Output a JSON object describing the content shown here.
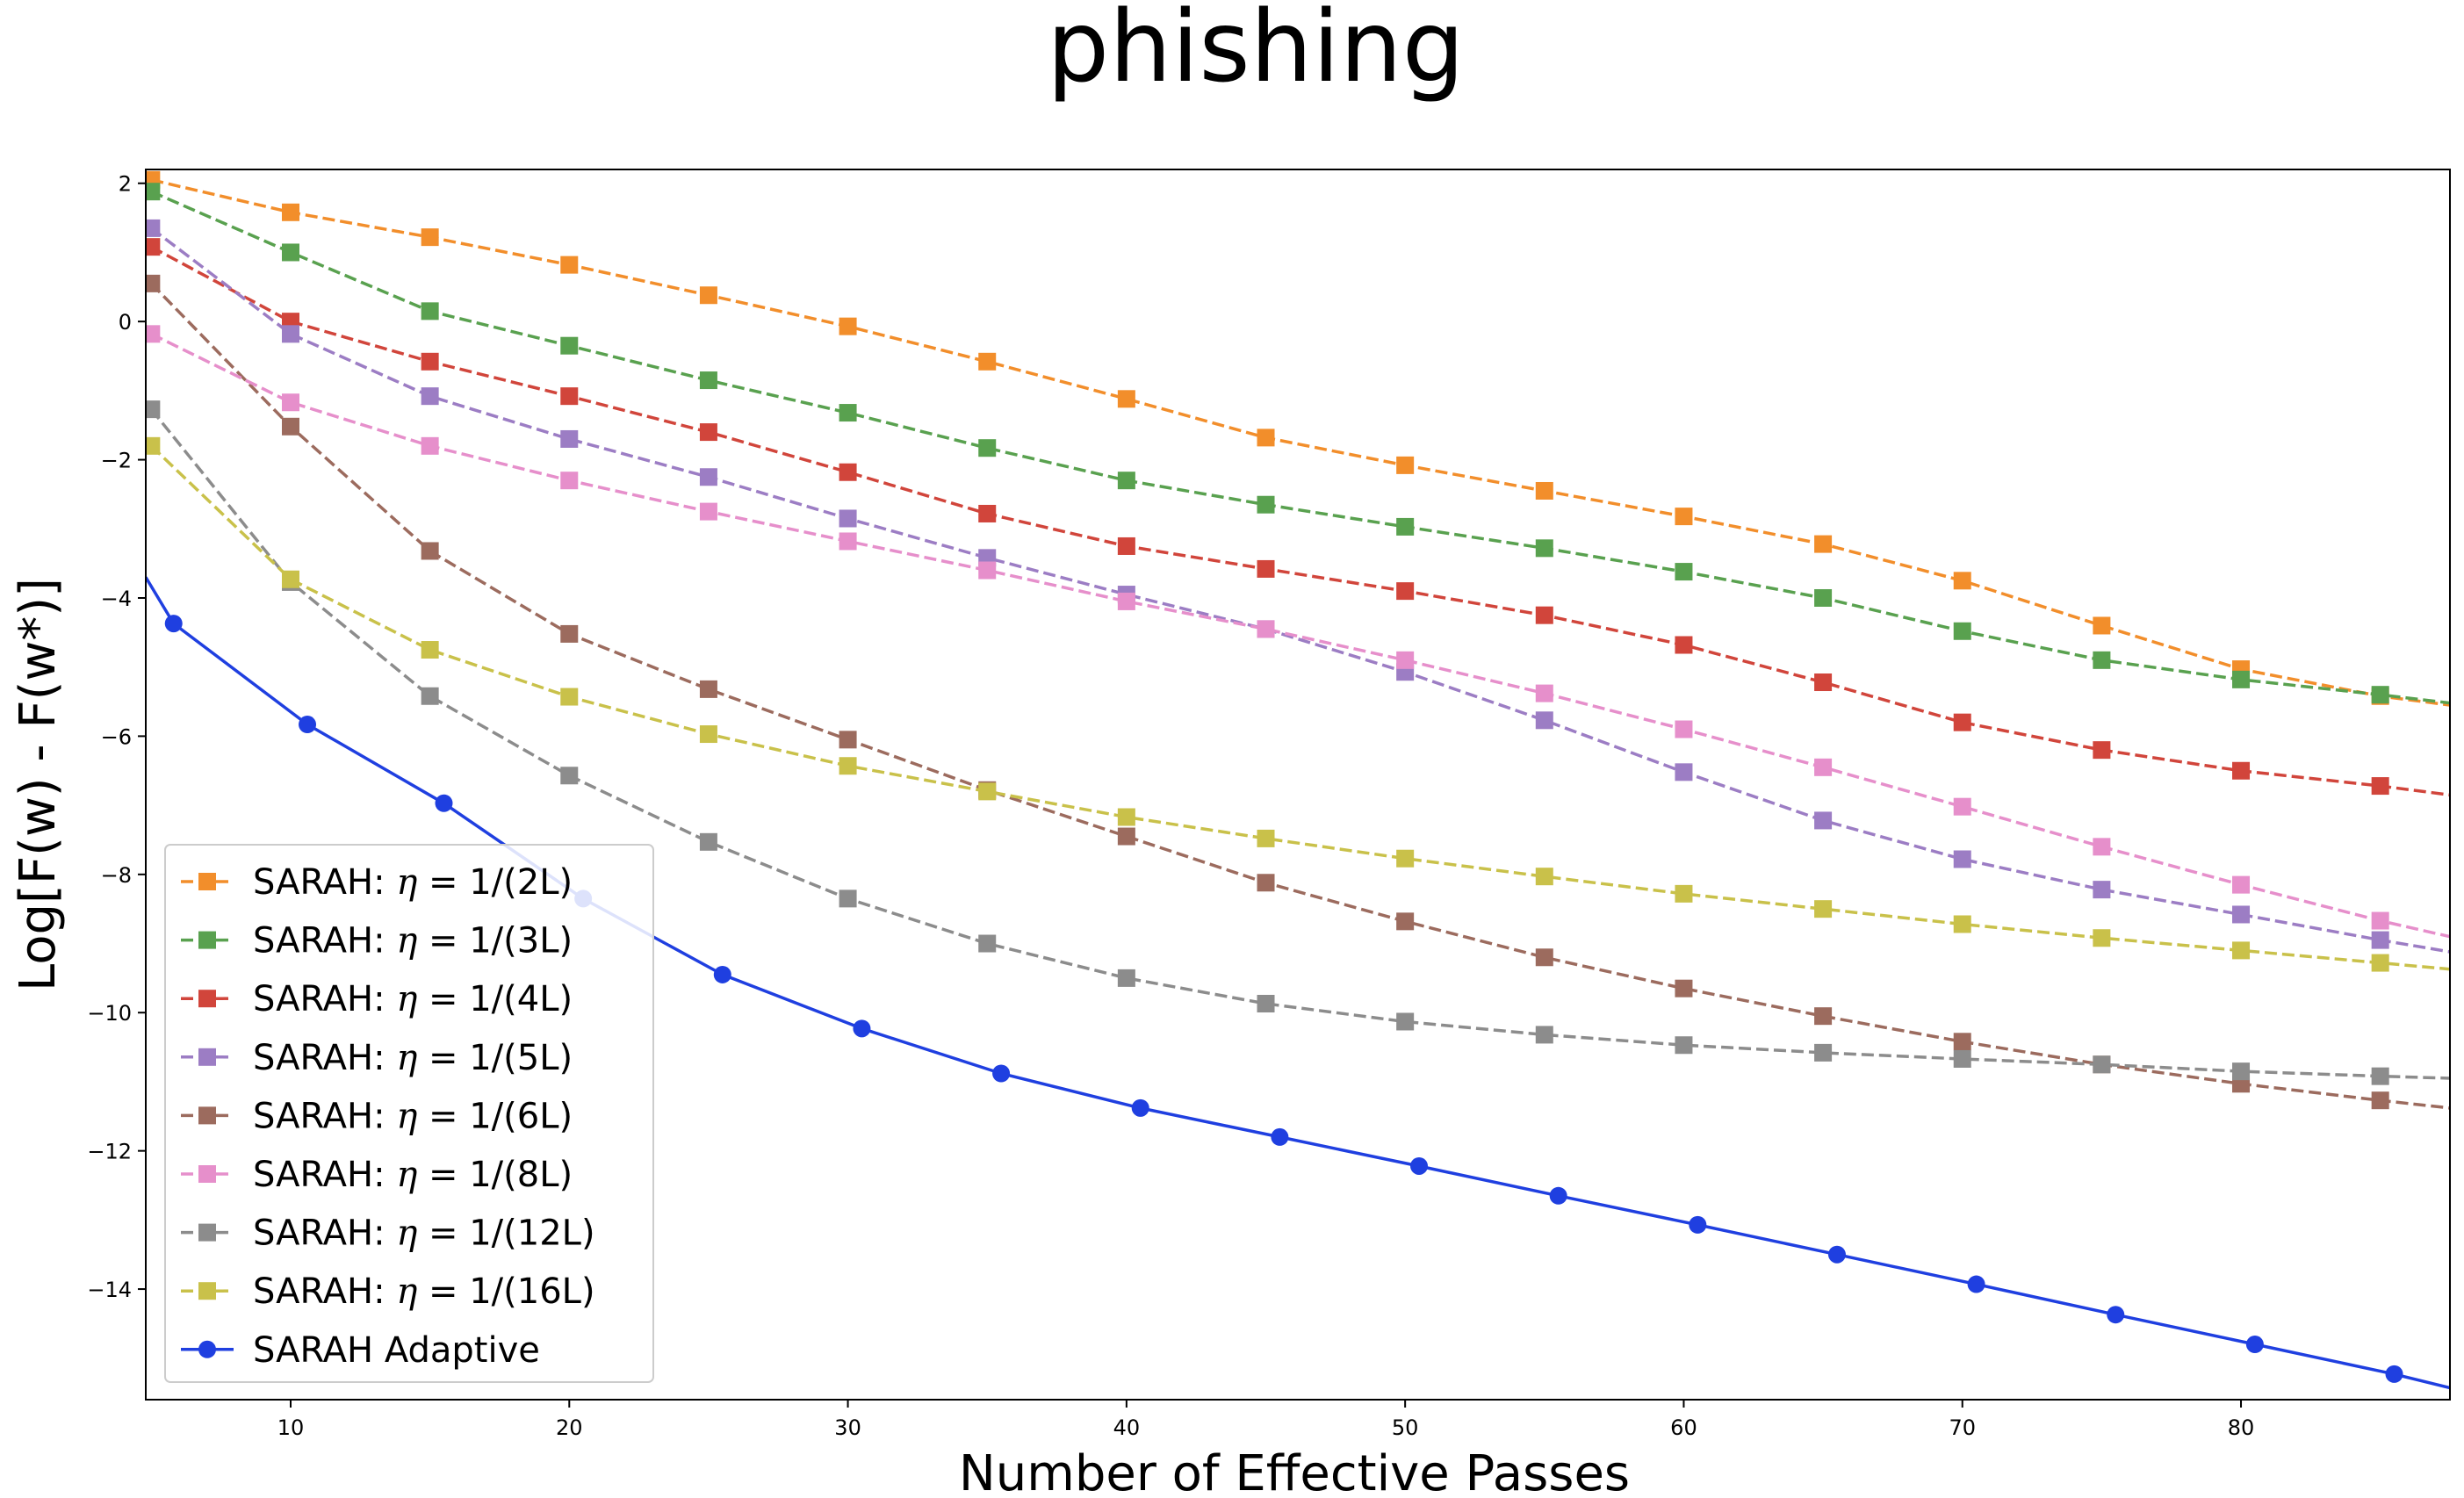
{
  "chart_data": {
    "type": "line",
    "title": "phishing",
    "xlabel": "Number of Effective Passes",
    "ylabel": "Log[F(w) - F(w*)]",
    "xlim": [
      4.8,
      87.5
    ],
    "ylim": [
      -15.6,
      2.2
    ],
    "xticks": [
      10,
      20,
      30,
      40,
      50,
      60,
      70,
      80
    ],
    "yticks": [
      2,
      0,
      -2,
      -4,
      -6,
      -8,
      -10,
      -12,
      -14
    ],
    "xtick_labels": [
      "10",
      "20",
      "30",
      "40",
      "50",
      "60",
      "70",
      "80"
    ],
    "ytick_labels": [
      "2",
      "0",
      "−2",
      "−4",
      "−6",
      "−8",
      "−10",
      "−12",
      "−14"
    ],
    "grid": false,
    "legend_position": "lower-left",
    "series": [
      {
        "name": "SARAH: η = 1/(2L)",
        "name_prefix": "SARAH: ",
        "name_symbol": "η",
        "name_suffix": " = 1/(2L)",
        "color": "#f28e2b",
        "linestyle": "dashed",
        "marker": "square",
        "x": [
          5,
          10,
          15,
          20,
          25,
          30,
          35,
          40,
          45,
          50,
          55,
          60,
          65,
          70,
          75,
          80,
          85,
          87.5
        ],
        "y": [
          2.05,
          1.58,
          1.22,
          0.82,
          0.38,
          -0.07,
          -0.58,
          -1.12,
          -1.68,
          -2.08,
          -2.45,
          -2.82,
          -3.22,
          -3.75,
          -4.4,
          -5.03,
          -5.42,
          -5.55
        ]
      },
      {
        "name": "SARAH: η = 1/(3L)",
        "name_prefix": "SARAH: ",
        "name_symbol": "η",
        "name_suffix": " = 1/(3L)",
        "color": "#59a14f",
        "linestyle": "dashed",
        "marker": "square",
        "x": [
          5,
          10,
          15,
          20,
          25,
          30,
          35,
          40,
          45,
          50,
          55,
          60,
          65,
          70,
          75,
          80,
          85,
          87.5
        ],
        "y": [
          1.88,
          1.0,
          0.15,
          -0.35,
          -0.85,
          -1.32,
          -1.83,
          -2.3,
          -2.65,
          -2.97,
          -3.28,
          -3.62,
          -4.0,
          -4.48,
          -4.9,
          -5.18,
          -5.4,
          -5.52
        ]
      },
      {
        "name": "SARAH: η = 1/(4L)",
        "name_prefix": "SARAH: ",
        "name_symbol": "η",
        "name_suffix": " = 1/(4L)",
        "color": "#d1453b",
        "linestyle": "dashed",
        "marker": "square",
        "x": [
          5,
          10,
          15,
          20,
          25,
          30,
          35,
          40,
          45,
          50,
          55,
          60,
          65,
          70,
          75,
          80,
          85,
          87.5
        ],
        "y": [
          1.08,
          0.0,
          -0.58,
          -1.08,
          -1.6,
          -2.18,
          -2.78,
          -3.25,
          -3.58,
          -3.9,
          -4.25,
          -4.68,
          -5.22,
          -5.8,
          -6.2,
          -6.5,
          -6.72,
          -6.85
        ]
      },
      {
        "name": "SARAH: η = 1/(5L)",
        "name_prefix": "SARAH: ",
        "name_symbol": "η",
        "name_suffix": " = 1/(5L)",
        "color": "#9c7dc4",
        "linestyle": "dashed",
        "marker": "square",
        "x": [
          5,
          10,
          15,
          20,
          25,
          30,
          35,
          40,
          45,
          50,
          55,
          60,
          65,
          70,
          75,
          80,
          85,
          87.5
        ],
        "y": [
          1.35,
          -0.18,
          -1.08,
          -1.7,
          -2.25,
          -2.85,
          -3.42,
          -3.95,
          -4.45,
          -5.07,
          -5.77,
          -6.52,
          -7.22,
          -7.78,
          -8.22,
          -8.58,
          -8.95,
          -9.12
        ]
      },
      {
        "name": "SARAH: η = 1/(6L)",
        "name_prefix": "SARAH: ",
        "name_symbol": "η",
        "name_suffix": " = 1/(6L)",
        "color": "#9c6b5e",
        "linestyle": "dashed",
        "marker": "square",
        "x": [
          5,
          10,
          15,
          20,
          25,
          30,
          35,
          40,
          45,
          50,
          55,
          60,
          65,
          70,
          75,
          80,
          85,
          87.5
        ],
        "y": [
          0.55,
          -1.52,
          -3.32,
          -4.52,
          -5.32,
          -6.05,
          -6.78,
          -7.45,
          -8.12,
          -8.68,
          -9.2,
          -9.65,
          -10.05,
          -10.42,
          -10.75,
          -11.03,
          -11.27,
          -11.38
        ]
      },
      {
        "name": "SARAH: η = 1/(8L)",
        "name_prefix": "SARAH: ",
        "name_symbol": "η",
        "name_suffix": " = 1/(8L)",
        "color": "#e68fcb",
        "linestyle": "dashed",
        "marker": "square",
        "x": [
          5,
          10,
          15,
          20,
          25,
          30,
          35,
          40,
          45,
          50,
          55,
          60,
          65,
          70,
          75,
          80,
          85,
          87.5
        ],
        "y": [
          -0.18,
          -1.17,
          -1.8,
          -2.3,
          -2.75,
          -3.18,
          -3.6,
          -4.05,
          -4.45,
          -4.9,
          -5.38,
          -5.9,
          -6.45,
          -7.02,
          -7.6,
          -8.15,
          -8.67,
          -8.9
        ]
      },
      {
        "name": "SARAH: η = 1/(12L)",
        "name_prefix": "SARAH: ",
        "name_symbol": "η",
        "name_suffix": " = 1/(12L)",
        "color": "#8c8c8c",
        "linestyle": "dashed",
        "marker": "square",
        "x": [
          5,
          10,
          15,
          20,
          25,
          30,
          35,
          40,
          45,
          50,
          55,
          60,
          65,
          70,
          75,
          80,
          85,
          87.5
        ],
        "y": [
          -1.27,
          -3.77,
          -5.42,
          -6.57,
          -7.53,
          -8.35,
          -9.0,
          -9.5,
          -9.87,
          -10.13,
          -10.32,
          -10.47,
          -10.58,
          -10.67,
          -10.75,
          -10.85,
          -10.92,
          -10.95
        ]
      },
      {
        "name": "SARAH: η = 1/(16L)",
        "name_prefix": "SARAH: ",
        "name_symbol": "η",
        "name_suffix": " = 1/(16L)",
        "color": "#c9c14a",
        "linestyle": "dashed",
        "marker": "square",
        "x": [
          5,
          10,
          15,
          20,
          25,
          30,
          35,
          40,
          45,
          50,
          55,
          60,
          65,
          70,
          75,
          80,
          85,
          87.5
        ],
        "y": [
          -1.8,
          -3.73,
          -4.75,
          -5.43,
          -5.97,
          -6.43,
          -6.8,
          -7.17,
          -7.48,
          -7.77,
          -8.03,
          -8.28,
          -8.5,
          -8.72,
          -8.92,
          -9.1,
          -9.28,
          -9.37
        ]
      },
      {
        "name": "SARAH Adaptive",
        "name_prefix": "SARAH Adaptive",
        "name_symbol": "",
        "name_suffix": "",
        "color": "#1f3fe0",
        "linestyle": "solid",
        "marker": "circle",
        "x": [
          4.8,
          5.8,
          10.6,
          15.5,
          20.5,
          25.5,
          30.5,
          35.5,
          40.5,
          45.5,
          50.5,
          55.5,
          60.5,
          65.5,
          70.5,
          75.5,
          80.5,
          85.5,
          87.5
        ],
        "y": [
          -3.7,
          -4.37,
          -5.83,
          -6.97,
          -8.35,
          -9.45,
          -10.23,
          -10.88,
          -11.38,
          -11.8,
          -12.22,
          -12.65,
          -13.07,
          -13.5,
          -13.93,
          -14.37,
          -14.8,
          -15.23,
          -15.43
        ]
      }
    ]
  }
}
